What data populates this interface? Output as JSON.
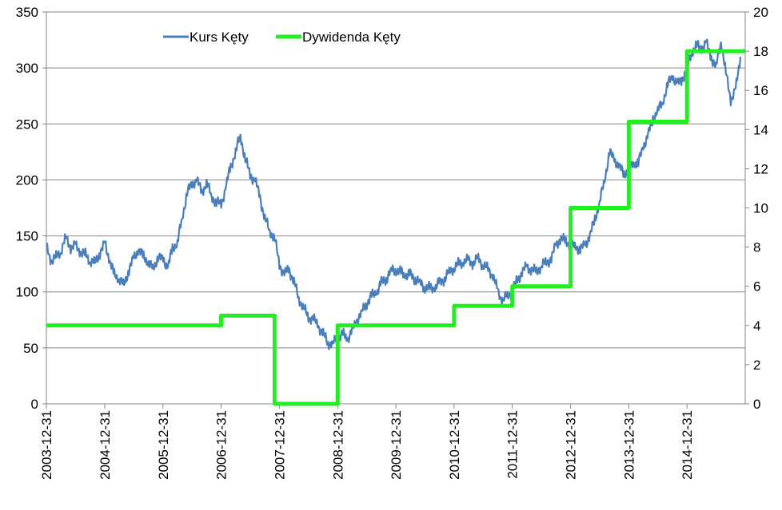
{
  "chart_data": {
    "type": "line",
    "title": "",
    "xlabel": "",
    "ylabel_left": "",
    "ylabel_right": "",
    "x_axis_type": "date",
    "xlim": [
      "2003-12-31",
      "2015-12-31"
    ],
    "x_tick_labels": [
      "2003-12-31",
      "2004-12-31",
      "2005-12-31",
      "2006-12-31",
      "2007-12-31",
      "2008-12-31",
      "2009-12-31",
      "2010-12-31",
      "2011-12-31",
      "2012-12-31",
      "2013-12-31",
      "2014-12-31"
    ],
    "ylim_left": [
      0,
      350
    ],
    "yticks_left": [
      0,
      50,
      100,
      150,
      200,
      250,
      300,
      350
    ],
    "ylim_right": [
      0,
      20
    ],
    "yticks_right": [
      0,
      2,
      4,
      6,
      8,
      10,
      12,
      14,
      16,
      18,
      20
    ],
    "grid": "horizontal",
    "legend_position": "top-left",
    "series": [
      {
        "name": "Kurs Kęty",
        "axis": "left",
        "color": "#4a7ebb",
        "points": [
          [
            "2003-12-31",
            140
          ],
          [
            "2004-01-31",
            128
          ],
          [
            "2004-03-01",
            131
          ],
          [
            "2004-04-01",
            137
          ],
          [
            "2004-05-01",
            148
          ],
          [
            "2004-06-01",
            140
          ],
          [
            "2004-07-01",
            141
          ],
          [
            "2004-08-01",
            136
          ],
          [
            "2004-09-01",
            133
          ],
          [
            "2004-10-01",
            128
          ],
          [
            "2004-11-01",
            126
          ],
          [
            "2004-12-01",
            135
          ],
          [
            "2005-01-01",
            143
          ],
          [
            "2005-02-01",
            128
          ],
          [
            "2005-03-01",
            115
          ],
          [
            "2005-04-01",
            112
          ],
          [
            "2005-05-01",
            106
          ],
          [
            "2005-06-01",
            120
          ],
          [
            "2005-07-01",
            130
          ],
          [
            "2005-08-01",
            138
          ],
          [
            "2005-09-01",
            131
          ],
          [
            "2005-10-01",
            127
          ],
          [
            "2005-11-01",
            120
          ],
          [
            "2005-12-01",
            132
          ],
          [
            "2006-01-01",
            128
          ],
          [
            "2006-02-01",
            123
          ],
          [
            "2006-03-01",
            138
          ],
          [
            "2006-04-01",
            145
          ],
          [
            "2006-05-01",
            165
          ],
          [
            "2006-06-01",
            190
          ],
          [
            "2006-07-01",
            195
          ],
          [
            "2006-08-01",
            201
          ],
          [
            "2006-09-01",
            188
          ],
          [
            "2006-10-01",
            198
          ],
          [
            "2006-11-01",
            185
          ],
          [
            "2006-12-01",
            180
          ],
          [
            "2007-01-01",
            178
          ],
          [
            "2007-02-01",
            195
          ],
          [
            "2007-03-01",
            212
          ],
          [
            "2007-04-01",
            225
          ],
          [
            "2007-05-01",
            240
          ],
          [
            "2007-06-01",
            218
          ],
          [
            "2007-07-01",
            205
          ],
          [
            "2007-08-01",
            199
          ],
          [
            "2007-09-01",
            185
          ],
          [
            "2007-10-01",
            165
          ],
          [
            "2007-11-01",
            155
          ],
          [
            "2007-12-01",
            148
          ],
          [
            "2008-01-01",
            125
          ],
          [
            "2008-02-01",
            115
          ],
          [
            "2008-03-01",
            121
          ],
          [
            "2008-04-01",
            108
          ],
          [
            "2008-05-01",
            95
          ],
          [
            "2008-06-01",
            85
          ],
          [
            "2008-07-01",
            78
          ],
          [
            "2008-08-01",
            75
          ],
          [
            "2008-09-01",
            70
          ],
          [
            "2008-10-01",
            62
          ],
          [
            "2008-11-01",
            55
          ],
          [
            "2008-12-01",
            53
          ],
          [
            "2009-01-01",
            60
          ],
          [
            "2009-02-01",
            62
          ],
          [
            "2009-03-01",
            58
          ],
          [
            "2009-04-01",
            65
          ],
          [
            "2009-05-01",
            75
          ],
          [
            "2009-06-01",
            82
          ],
          [
            "2009-07-01",
            90
          ],
          [
            "2009-08-01",
            96
          ],
          [
            "2009-09-01",
            100
          ],
          [
            "2009-10-01",
            108
          ],
          [
            "2009-11-01",
            112
          ],
          [
            "2009-12-01",
            119
          ],
          [
            "2010-01-01",
            120
          ],
          [
            "2010-02-01",
            117
          ],
          [
            "2010-03-01",
            115
          ],
          [
            "2010-04-01",
            115
          ],
          [
            "2010-05-01",
            112
          ],
          [
            "2010-06-01",
            108
          ],
          [
            "2010-07-01",
            104
          ],
          [
            "2010-08-01",
            103
          ],
          [
            "2010-09-01",
            104
          ],
          [
            "2010-10-01",
            108
          ],
          [
            "2010-11-01",
            112
          ],
          [
            "2010-12-01",
            118
          ],
          [
            "2011-01-01",
            122
          ],
          [
            "2011-02-01",
            125
          ],
          [
            "2011-03-01",
            127
          ],
          [
            "2011-04-01",
            128
          ],
          [
            "2011-05-01",
            126
          ],
          [
            "2011-06-01",
            130
          ],
          [
            "2011-07-01",
            124
          ],
          [
            "2011-08-01",
            120
          ],
          [
            "2011-09-01",
            115
          ],
          [
            "2011-10-01",
            100
          ],
          [
            "2011-11-01",
            93
          ],
          [
            "2011-12-01",
            96
          ],
          [
            "2012-01-01",
            102
          ],
          [
            "2012-02-01",
            110
          ],
          [
            "2012-03-01",
            118
          ],
          [
            "2012-04-01",
            122
          ],
          [
            "2012-05-01",
            120
          ],
          [
            "2012-06-01",
            118
          ],
          [
            "2012-07-01",
            124
          ],
          [
            "2012-08-01",
            126
          ],
          [
            "2012-09-01",
            130
          ],
          [
            "2012-10-01",
            142
          ],
          [
            "2012-11-01",
            148
          ],
          [
            "2012-12-01",
            145
          ],
          [
            "2013-01-01",
            142
          ],
          [
            "2013-02-01",
            140
          ],
          [
            "2013-03-01",
            138
          ],
          [
            "2013-04-01",
            142
          ],
          [
            "2013-05-01",
            150
          ],
          [
            "2013-06-01",
            165
          ],
          [
            "2013-07-01",
            180
          ],
          [
            "2013-08-01",
            200
          ],
          [
            "2013-09-01",
            225
          ],
          [
            "2013-10-01",
            218
          ],
          [
            "2013-11-01",
            212
          ],
          [
            "2013-12-01",
            205
          ],
          [
            "2014-01-01",
            210
          ],
          [
            "2014-02-01",
            215
          ],
          [
            "2014-03-01",
            215
          ],
          [
            "2014-04-01",
            230
          ],
          [
            "2014-05-01",
            240
          ],
          [
            "2014-06-01",
            255
          ],
          [
            "2014-07-01",
            262
          ],
          [
            "2014-08-01",
            270
          ],
          [
            "2014-09-01",
            285
          ],
          [
            "2014-10-01",
            293
          ],
          [
            "2014-11-01",
            285
          ],
          [
            "2014-12-01",
            290
          ],
          [
            "2015-01-01",
            300
          ],
          [
            "2015-02-01",
            315
          ],
          [
            "2015-03-01",
            320
          ],
          [
            "2015-04-01",
            318
          ],
          [
            "2015-05-01",
            322
          ],
          [
            "2015-06-01",
            310
          ],
          [
            "2015-07-01",
            300
          ],
          [
            "2015-08-01",
            325
          ],
          [
            "2015-09-01",
            295
          ],
          [
            "2015-10-01",
            272
          ],
          [
            "2015-11-01",
            280
          ],
          [
            "2015-12-01",
            310
          ]
        ]
      },
      {
        "name": "Dywidenda Kęty",
        "axis": "right",
        "color": "#22ee22",
        "type": "step",
        "points": [
          [
            "2003-12-31",
            4
          ],
          [
            "2006-12-31",
            4
          ],
          [
            "2006-12-31",
            4.5
          ],
          [
            "2007-12-01",
            4.5
          ],
          [
            "2007-12-01",
            0
          ],
          [
            "2008-12-31",
            0
          ],
          [
            "2008-12-31",
            4
          ],
          [
            "2010-12-31",
            4
          ],
          [
            "2010-12-31",
            5
          ],
          [
            "2011-12-31",
            5
          ],
          [
            "2011-12-31",
            6
          ],
          [
            "2012-12-31",
            6
          ],
          [
            "2012-12-31",
            10
          ],
          [
            "2013-12-31",
            10
          ],
          [
            "2013-12-31",
            14.4
          ],
          [
            "2014-12-31",
            14.4
          ],
          [
            "2014-12-31",
            18
          ],
          [
            "2015-12-31",
            18
          ]
        ]
      }
    ]
  }
}
